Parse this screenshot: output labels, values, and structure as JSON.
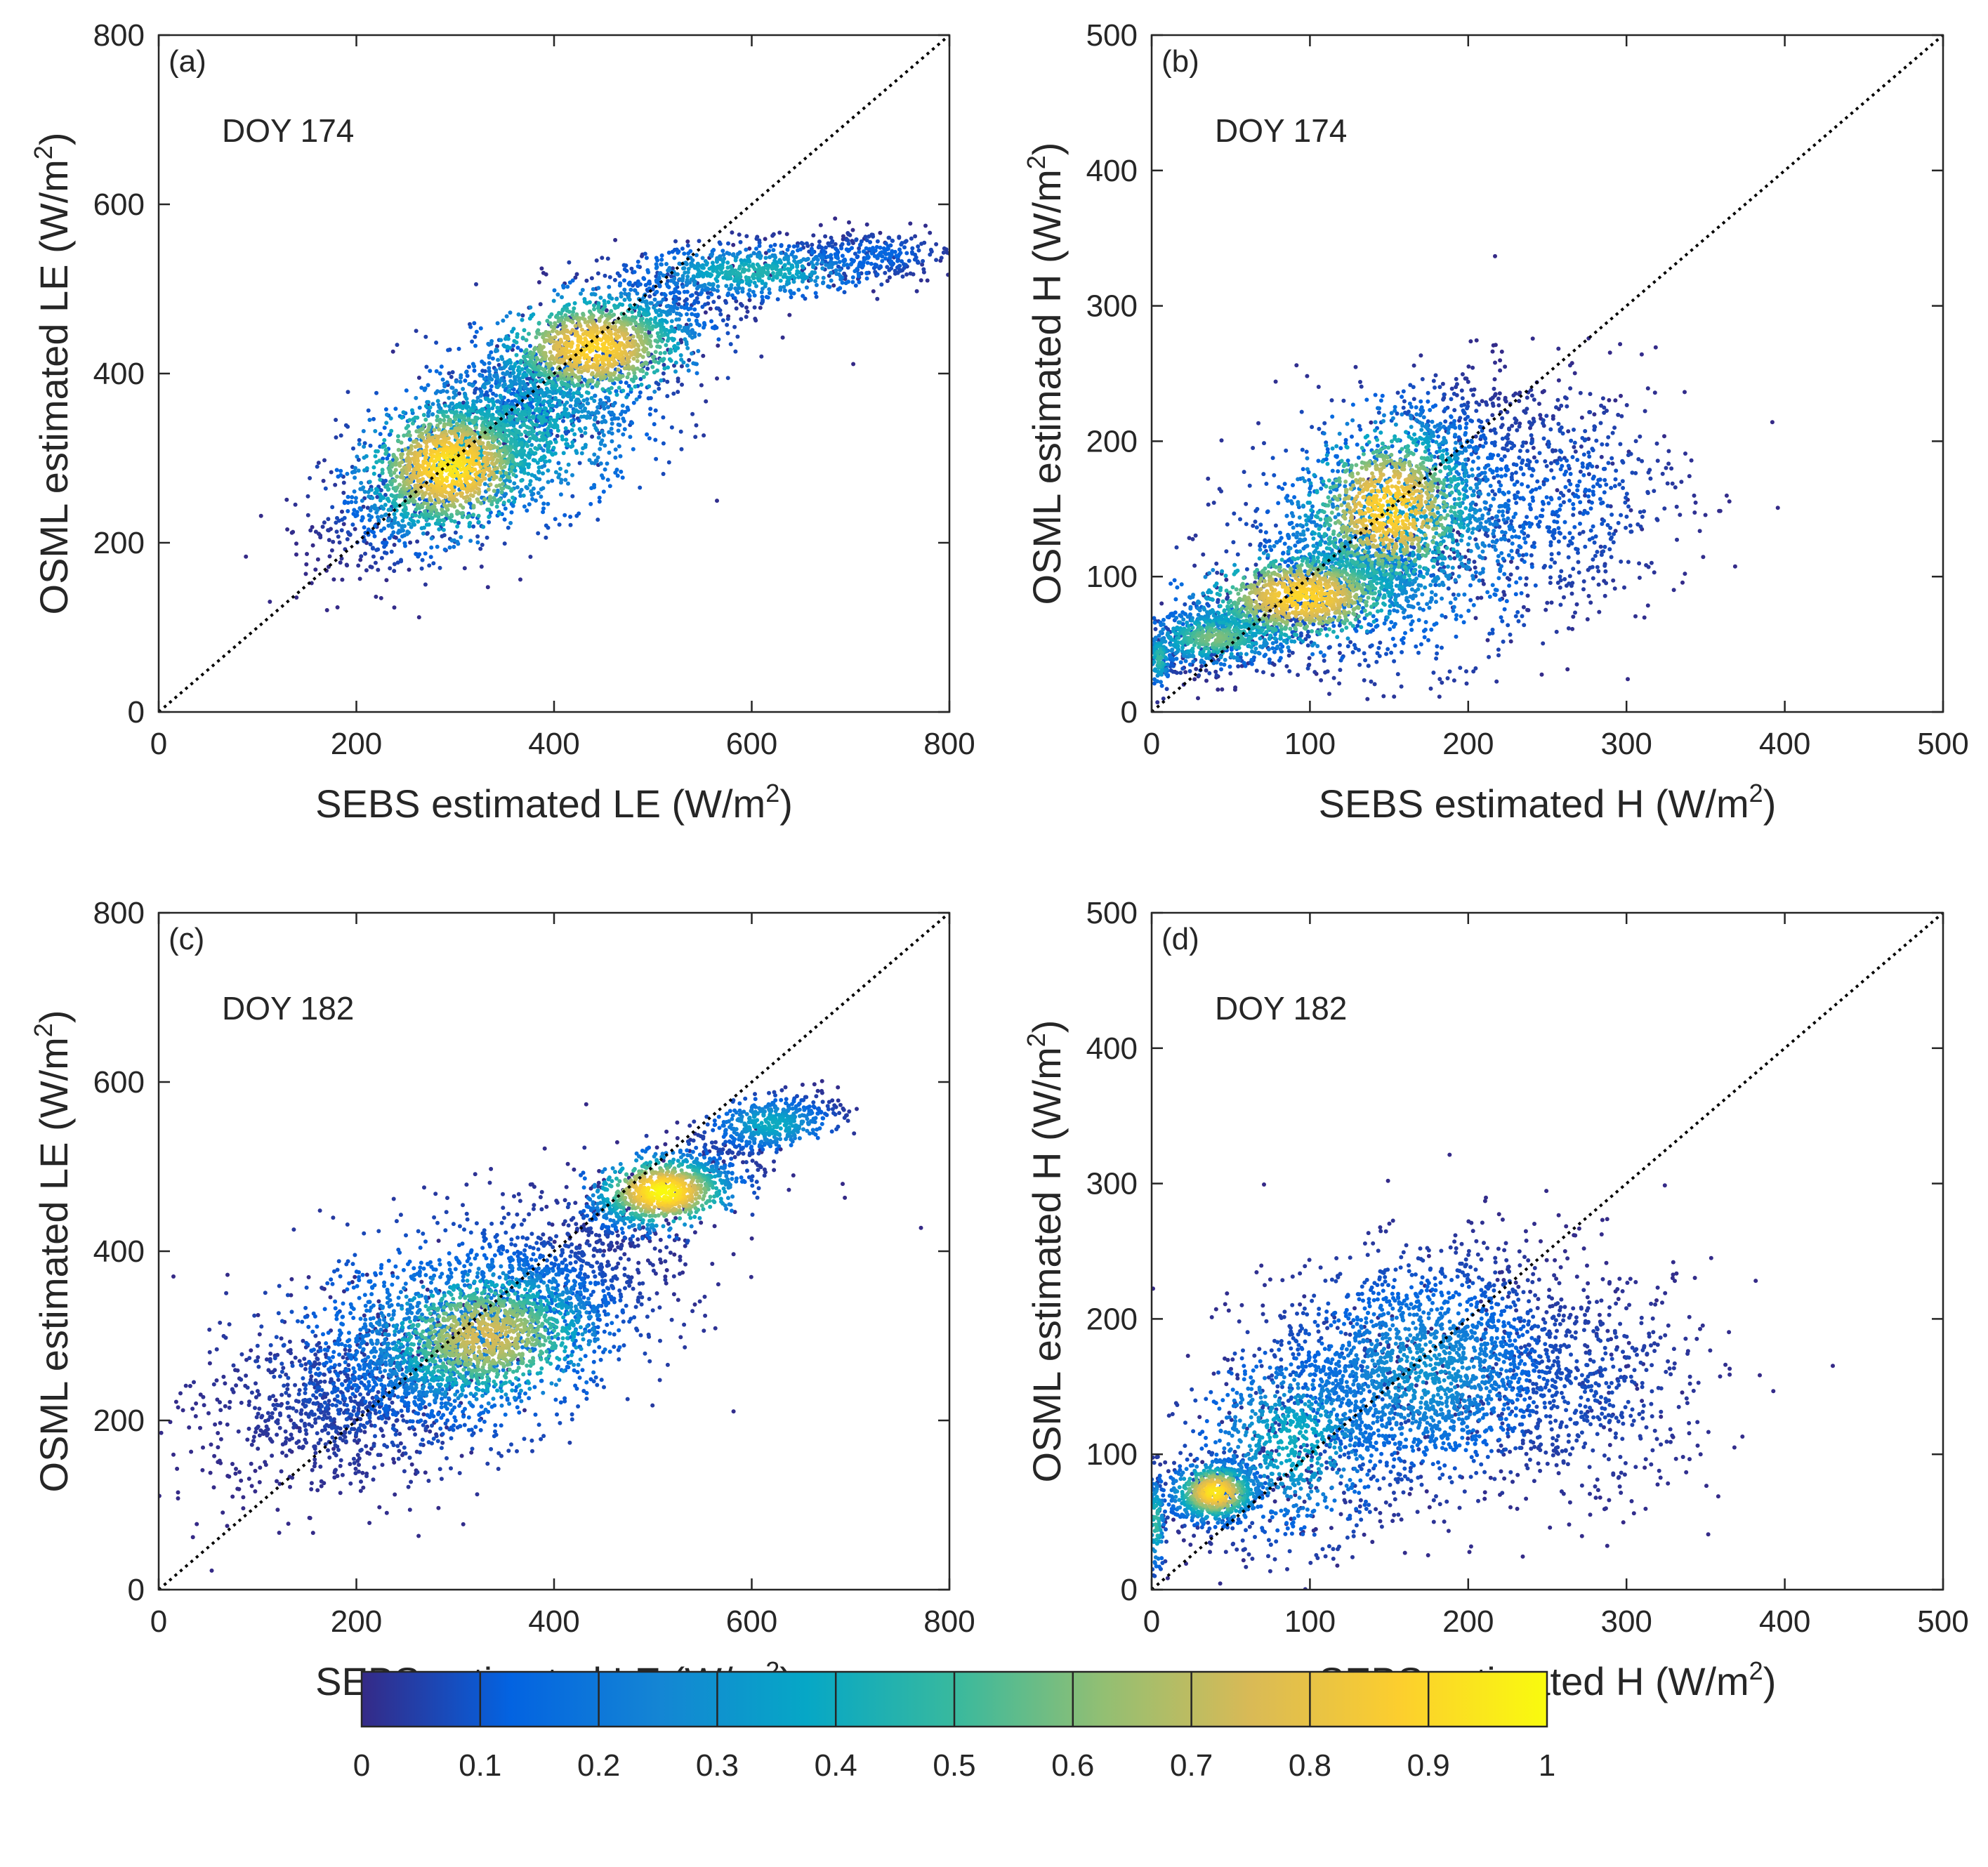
{
  "colormap": {
    "name": "parula",
    "stops": [
      "#352a87",
      "#0363e1",
      "#1485d4",
      "#06a7c6",
      "#38b99e",
      "#92bf73",
      "#d9ba56",
      "#fcce2e",
      "#f9fb0e"
    ]
  },
  "chart_data": [
    {
      "id": "a",
      "type": "scatter",
      "panel_label": "(a)",
      "annotation": "DOY 174",
      "xlabel": "SEBS estimated LE (W/m",
      "ylabel": "OSML estimated LE (W/m",
      "unit_sup": "2",
      "unit_close": ")",
      "xlim": [
        0,
        800
      ],
      "ylim": [
        0,
        800
      ],
      "xticks": [
        0,
        200,
        400,
        600,
        800
      ],
      "yticks": [
        0,
        200,
        400,
        600,
        800
      ],
      "xtick_labels": [
        "0",
        "200",
        "400",
        "600",
        "800"
      ],
      "ytick_labels": [
        "0",
        "200",
        "400",
        "600",
        "800"
      ],
      "reference_line": "1:1",
      "density_clusters": [
        {
          "x": 295,
          "y": 290,
          "sx": 55,
          "sy": 50,
          "rho": 0.6,
          "n": 1700,
          "peak": 0.95
        },
        {
          "x": 440,
          "y": 430,
          "sx": 60,
          "sy": 40,
          "rho": 0.55,
          "n": 1500,
          "peak": 0.9
        },
        {
          "x": 360,
          "y": 330,
          "sx": 80,
          "sy": 60,
          "rho": 0.5,
          "n": 1300,
          "peak": 0.45
        },
        {
          "x": 600,
          "y": 520,
          "sx": 70,
          "sy": 18,
          "rho": 0.3,
          "n": 700,
          "peak": 0.45
        },
        {
          "x": 720,
          "y": 540,
          "sx": 45,
          "sy": 15,
          "rho": 0.0,
          "n": 250,
          "peak": 0.15
        }
      ]
    },
    {
      "id": "b",
      "type": "scatter",
      "panel_label": "(b)",
      "annotation": "DOY 174",
      "xlabel": "SEBS estimated H (W/m",
      "ylabel": "OSML estimated H (W/m",
      "unit_sup": "2",
      "unit_close": ")",
      "xlim": [
        0,
        500
      ],
      "ylim": [
        0,
        500
      ],
      "xticks": [
        0,
        100,
        200,
        300,
        400,
        500
      ],
      "yticks": [
        0,
        100,
        200,
        300,
        400,
        500
      ],
      "xtick_labels": [
        "0",
        "100",
        "200",
        "300",
        "400",
        "500"
      ],
      "ytick_labels": [
        "0",
        "100",
        "200",
        "300",
        "400",
        "500"
      ],
      "reference_line": "1:1",
      "density_clusters": [
        {
          "x": 150,
          "y": 150,
          "sx": 35,
          "sy": 40,
          "rho": 0.5,
          "n": 1400,
          "peak": 0.9
        },
        {
          "x": 95,
          "y": 85,
          "sx": 40,
          "sy": 22,
          "rho": 0.6,
          "n": 1400,
          "peak": 0.9
        },
        {
          "x": 160,
          "y": 130,
          "sx": 55,
          "sy": 50,
          "rho": 0.3,
          "n": 1400,
          "peak": 0.35
        },
        {
          "x": 40,
          "y": 55,
          "sx": 25,
          "sy": 12,
          "rho": 0.3,
          "n": 600,
          "peak": 0.6
        },
        {
          "x": 260,
          "y": 160,
          "sx": 40,
          "sy": 45,
          "rho": 0.0,
          "n": 500,
          "peak": 0.12
        },
        {
          "x": 5,
          "y": 40,
          "sx": 4,
          "sy": 12,
          "rho": 0.0,
          "n": 120,
          "peak": 0.5
        }
      ]
    },
    {
      "id": "c",
      "type": "scatter",
      "panel_label": "(c)",
      "annotation": "DOY 182",
      "xlabel": "SEBS estimated LE (W/m",
      "ylabel": "OSML estimated LE (W/m",
      "unit_sup": "2",
      "unit_close": ")",
      "xlim": [
        0,
        800
      ],
      "ylim": [
        0,
        800
      ],
      "xticks": [
        0,
        200,
        400,
        600,
        800
      ],
      "yticks": [
        0,
        200,
        400,
        600,
        800
      ],
      "xtick_labels": [
        "0",
        "200",
        "400",
        "600",
        "800"
      ],
      "ytick_labels": [
        "0",
        "200",
        "400",
        "600",
        "800"
      ],
      "reference_line": "1:1",
      "density_clusters": [
        {
          "x": 330,
          "y": 300,
          "sx": 70,
          "sy": 50,
          "rho": 0.6,
          "n": 1700,
          "peak": 0.75
        },
        {
          "x": 510,
          "y": 470,
          "sx": 40,
          "sy": 25,
          "rho": 0.5,
          "n": 1000,
          "peak": 1.0
        },
        {
          "x": 300,
          "y": 300,
          "sx": 110,
          "sy": 80,
          "rho": 0.55,
          "n": 1800,
          "peak": 0.25
        },
        {
          "x": 620,
          "y": 550,
          "sx": 35,
          "sy": 18,
          "rho": 0.5,
          "n": 500,
          "peak": 0.4
        },
        {
          "x": 180,
          "y": 230,
          "sx": 70,
          "sy": 60,
          "rho": 0.3,
          "n": 500,
          "peak": 0.05
        }
      ]
    },
    {
      "id": "d",
      "type": "scatter",
      "panel_label": "(d)",
      "annotation": "DOY 182",
      "xlabel": "SEBS estimated H (W/m",
      "ylabel": "OSML estimated H (W/m",
      "unit_sup": "2",
      "unit_close": ")",
      "xlim": [
        0,
        500
      ],
      "ylim": [
        0,
        500
      ],
      "xticks": [
        0,
        100,
        200,
        300,
        400,
        500
      ],
      "yticks": [
        0,
        100,
        200,
        300,
        400,
        500
      ],
      "xtick_labels": [
        "0",
        "100",
        "200",
        "300",
        "400",
        "500"
      ],
      "ytick_labels": [
        "0",
        "100",
        "200",
        "300",
        "400",
        "500"
      ],
      "reference_line": "1:1",
      "density_clusters": [
        {
          "x": 40,
          "y": 72,
          "sx": 15,
          "sy": 12,
          "rho": 0.2,
          "n": 700,
          "peak": 0.95
        },
        {
          "x": 170,
          "y": 160,
          "sx": 50,
          "sy": 45,
          "rho": 0.2,
          "n": 2000,
          "peak": 0.3
        },
        {
          "x": 90,
          "y": 110,
          "sx": 35,
          "sy": 40,
          "rho": 0.3,
          "n": 900,
          "peak": 0.4
        },
        {
          "x": 270,
          "y": 150,
          "sx": 45,
          "sy": 45,
          "rho": 0.0,
          "n": 600,
          "peak": 0.08
        },
        {
          "x": 3,
          "y": 50,
          "sx": 3,
          "sy": 20,
          "rho": 0.0,
          "n": 120,
          "peak": 0.5
        }
      ]
    }
  ],
  "colorbar": {
    "min": 0,
    "max": 1,
    "ticks": [
      0,
      0.1,
      0.2,
      0.3,
      0.4,
      0.5,
      0.6,
      0.7,
      0.8,
      0.9,
      1
    ],
    "tick_labels": [
      "0",
      "0.1",
      "0.2",
      "0.3",
      "0.4",
      "0.5",
      "0.6",
      "0.7",
      "0.8",
      "0.9",
      "1"
    ]
  }
}
